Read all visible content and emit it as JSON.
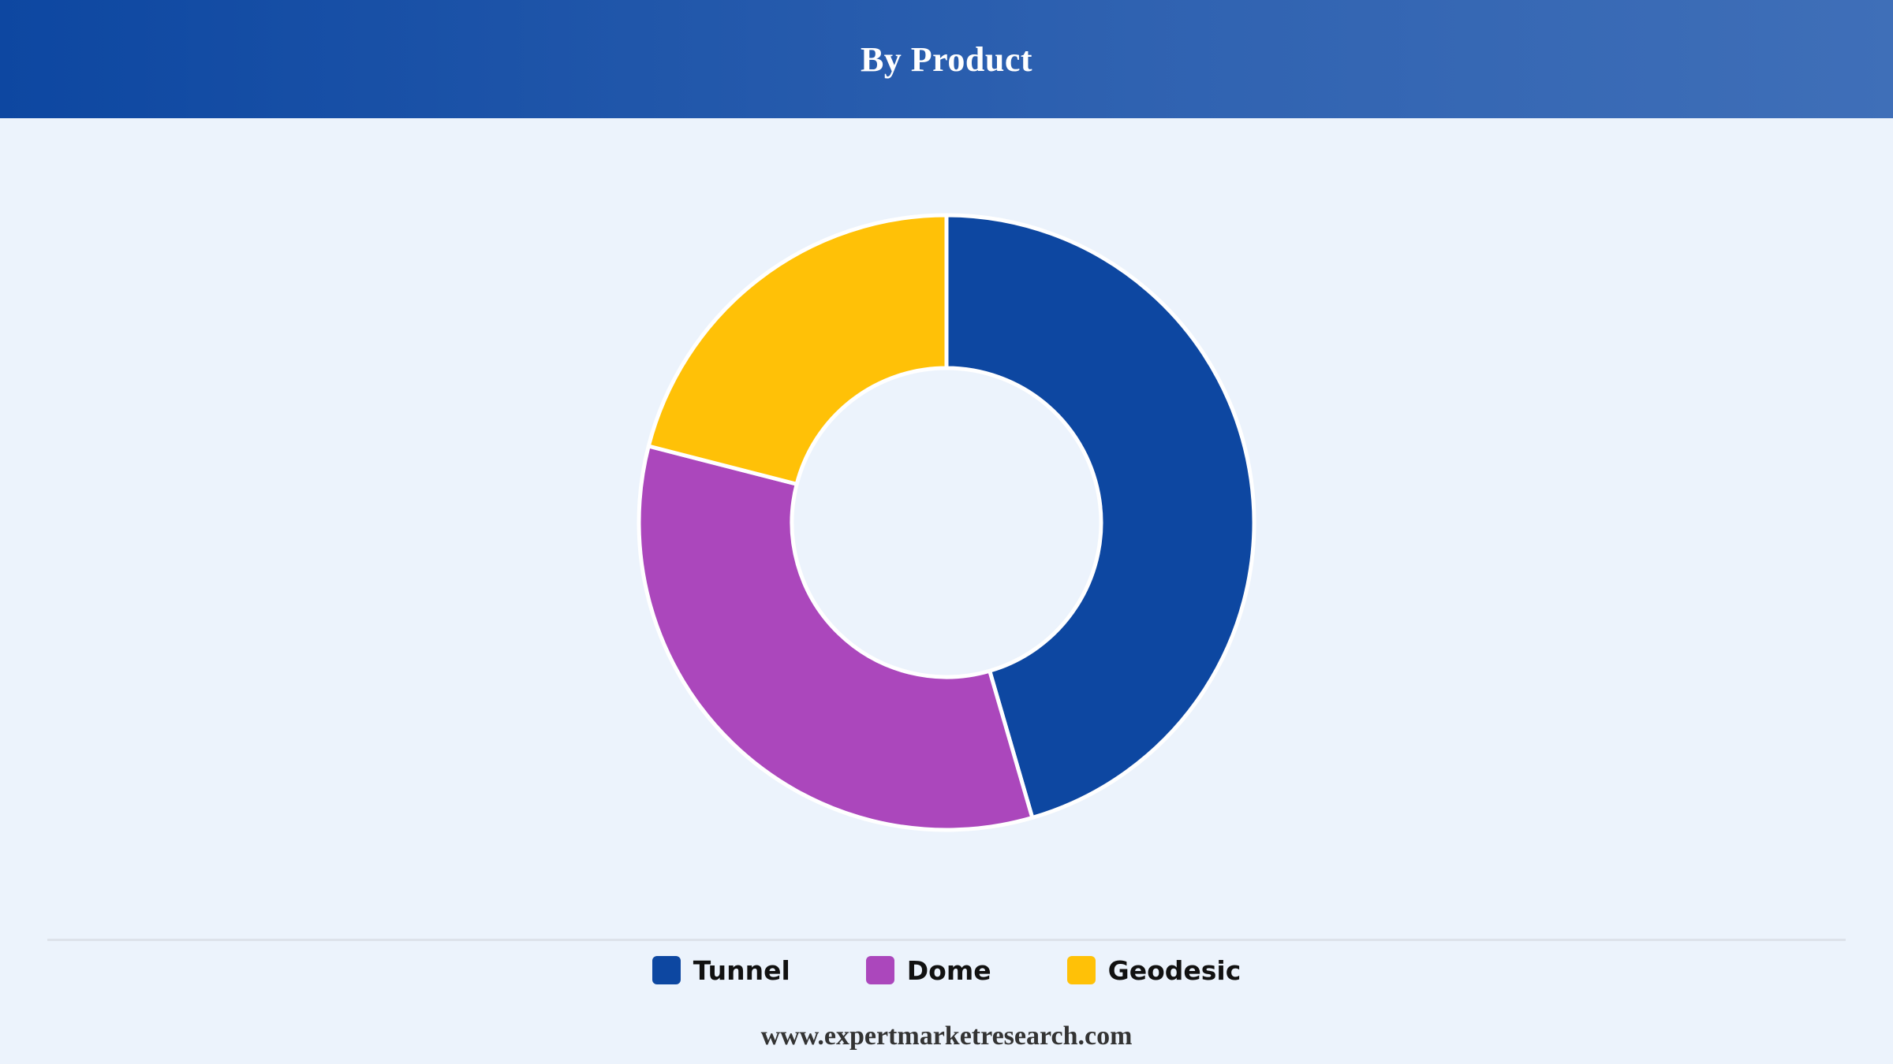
{
  "header": {
    "title": "By Product"
  },
  "chart_data": {
    "type": "pie",
    "donut": true,
    "categories": [
      "Tunnel",
      "Dome",
      "Geodesic"
    ],
    "values": [
      45.5,
      33.5,
      21.0
    ],
    "colors": [
      "#0d47a1",
      "#ab47bc",
      "#ffc107"
    ],
    "legend_position": "bottom"
  },
  "footer": {
    "url": "www.expertmarketresearch.com"
  }
}
